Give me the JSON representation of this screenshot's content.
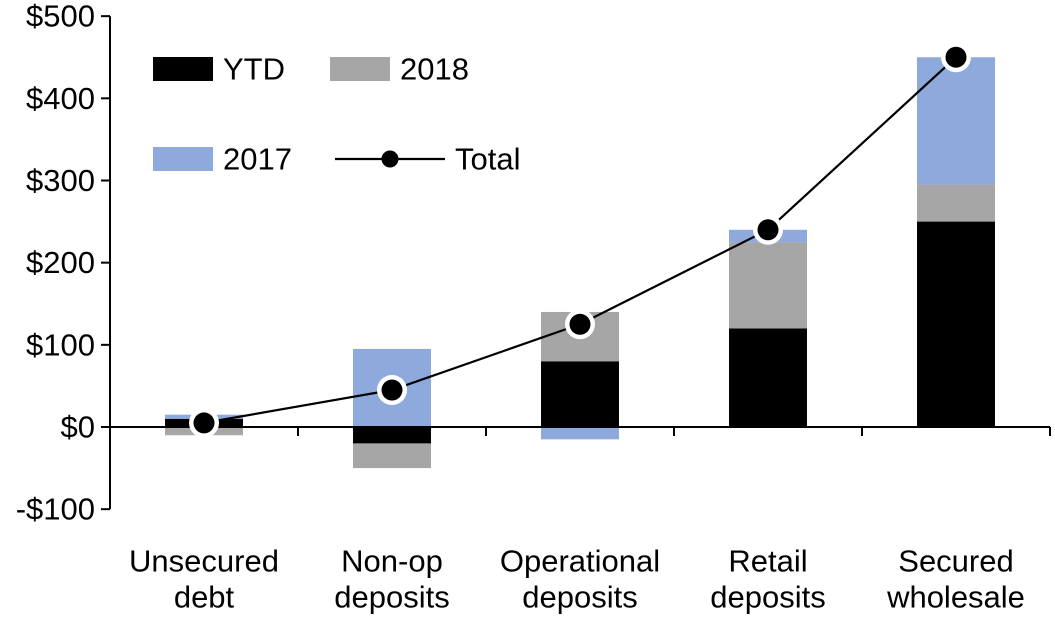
{
  "chart_data": {
    "type": "bar",
    "stacked": true,
    "background": "#ffffff",
    "axis_color": "#000000",
    "categories": [
      "Unsecured debt",
      "Non-op deposits",
      "Operational deposits",
      "Retail deposits",
      "Secured wholesale"
    ],
    "category_label_lines": [
      [
        "Unsecured",
        "debt"
      ],
      [
        "Non-op",
        "deposits"
      ],
      [
        "Operational",
        "deposits"
      ],
      [
        "Retail",
        "deposits"
      ],
      [
        "Secured",
        "wholesale"
      ]
    ],
    "series": [
      {
        "name": "YTD",
        "color": "#000000",
        "values": [
          10,
          -20,
          80,
          120,
          250
        ]
      },
      {
        "name": "2018",
        "color": "#a6a6a6",
        "values": [
          -10,
          -30,
          60,
          105,
          45
        ]
      },
      {
        "name": "2017",
        "color": "#8ea9db",
        "values": [
          5,
          95,
          -15,
          15,
          155
        ]
      }
    ],
    "total_series": {
      "name": "Total",
      "color": "#000000",
      "values": [
        5,
        45,
        125,
        240,
        450
      ]
    },
    "marker": {
      "fill": "#000000",
      "ring": "#ffffff"
    },
    "y_axis": {
      "min": -100,
      "max": 500,
      "step": 100,
      "tick_values": [
        500,
        400,
        300,
        200,
        100,
        0,
        -100
      ],
      "tick_labels": [
        "$500",
        "$400",
        "$300",
        "$200",
        "$100",
        "$0",
        "-$100"
      ],
      "currency": "$",
      "grid": false
    },
    "legend": {
      "position": "top-left-inside",
      "entries": [
        {
          "label": "YTD",
          "symbol": "swatch",
          "color": "#000000"
        },
        {
          "label": "2018",
          "symbol": "swatch",
          "color": "#a6a6a6"
        },
        {
          "label": "2017",
          "symbol": "swatch",
          "color": "#8ea9db"
        },
        {
          "label": "Total",
          "symbol": "line-dot",
          "color": "#000000"
        }
      ]
    }
  }
}
